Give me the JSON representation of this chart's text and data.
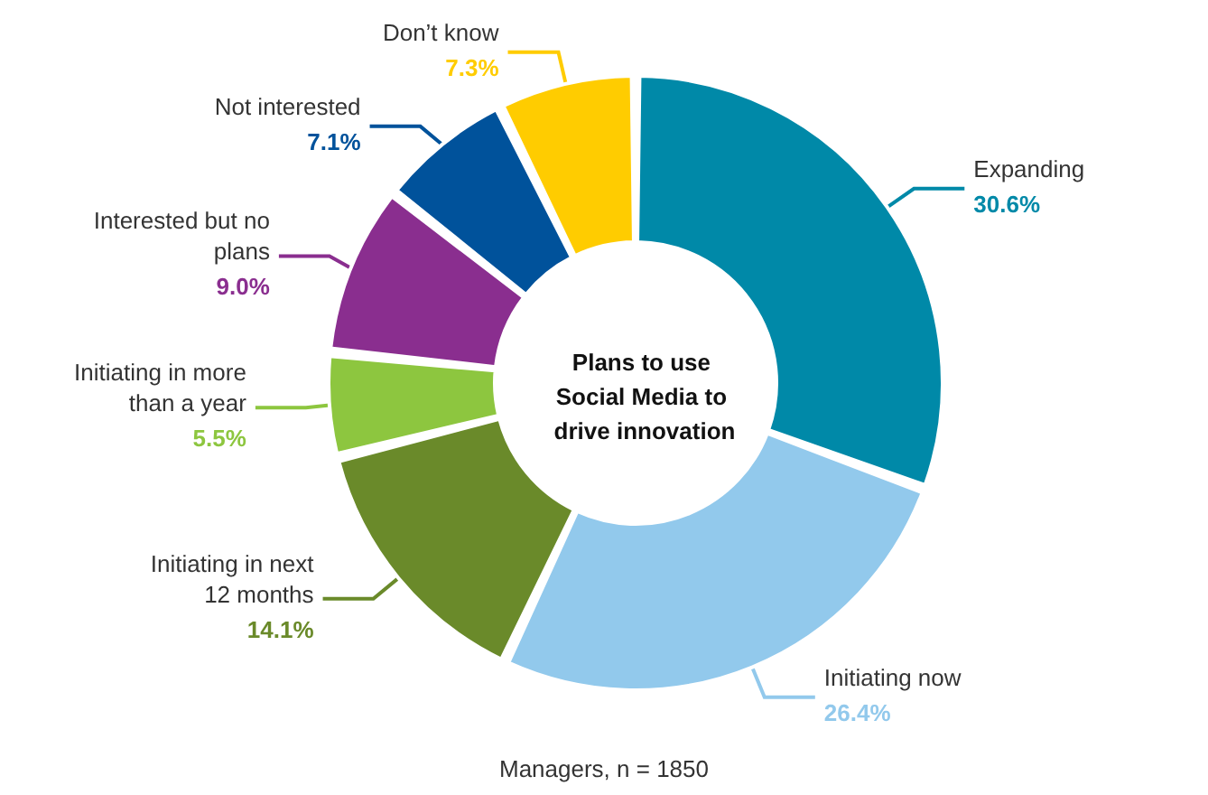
{
  "chart_data": {
    "type": "donut",
    "title": "Plans to use Social Media to drive innovation",
    "categories": [
      "Expanding",
      "Initiating now",
      "Initiating in next 12 months",
      "Initiating in more than a year",
      "Interested but no plans",
      "Not interested",
      "Don’t know"
    ],
    "values": [
      30.6,
      26.4,
      14.1,
      5.5,
      9.0,
      7.1,
      7.3
    ],
    "colors": [
      "#0089a8",
      "#92c9ec",
      "#6a8a2a",
      "#8dc63f",
      "#8a2e8f",
      "#00529b",
      "#ffcc00"
    ],
    "value_labels": [
      "30.6%",
      "26.4%",
      "14.1%",
      "5.5%",
      "9.0%",
      "7.1%",
      "7.3%"
    ],
    "legend": false,
    "annotations": [
      "Managers, n = 1850"
    ]
  }
}
